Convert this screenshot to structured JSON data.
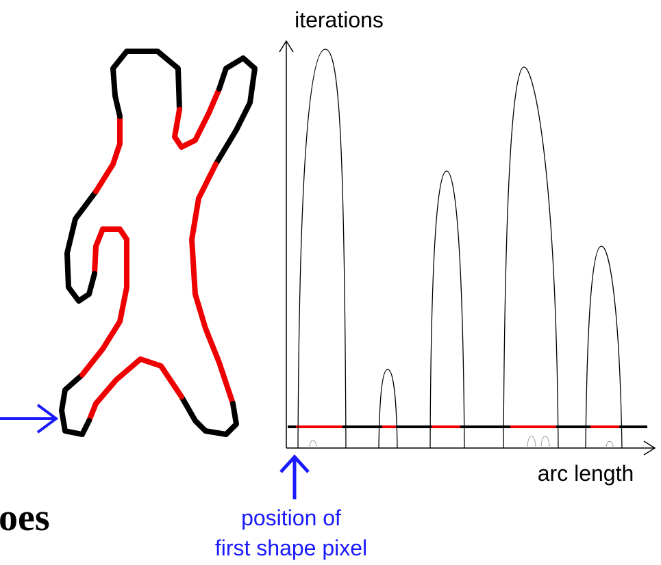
{
  "y_axis_label": "iterations",
  "x_axis_label": "arc length",
  "annotation": {
    "line1": "position of",
    "line2": "first shape pixel"
  },
  "partial_title": "oes"
}
